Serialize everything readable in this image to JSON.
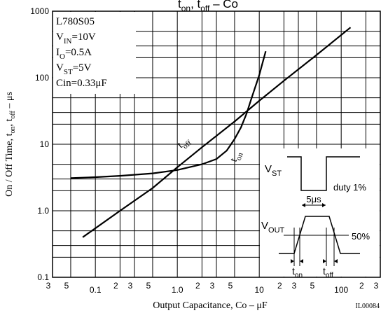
{
  "chart_data": {
    "type": "line",
    "title_main": "t",
    "title_sub_on": "on",
    "title_sep": ",  t",
    "title_sub_off": "off",
    "title_tail": " – Co",
    "xlabel": "Output Capacitance, Co  –  μF",
    "ylabel_parts": [
      "On / Off  Time, t",
      "on",
      ", t",
      "off",
      "  –  μs"
    ],
    "figure_code": "IL00084",
    "x_scale": "log",
    "y_scale": "log",
    "xlim": [
      0.03,
      300
    ],
    "ylim": [
      0.1,
      1000
    ],
    "grid": true,
    "decade_labels": [
      "0.1",
      "1.0",
      "10",
      "100"
    ],
    "minor_labels": [
      "2",
      "3",
      "5"
    ],
    "y_tick_labels": [
      {
        "value": 1000,
        "label": "1000"
      },
      {
        "value": 100,
        "label": "100"
      },
      {
        "value": 10,
        "label": "10"
      },
      {
        "value": 1,
        "label": "1.0"
      },
      {
        "value": 0.1,
        "label": "0.1"
      }
    ],
    "conditions": [
      {
        "base": "L780S05",
        "sub": "",
        "tail": ""
      },
      {
        "base": "V",
        "sub": "IN",
        "tail": "=10V"
      },
      {
        "base": "I",
        "sub": "O",
        "tail": "=0.5A"
      },
      {
        "base": "V",
        "sub": "ST",
        "tail": "=5V"
      },
      {
        "base": "Cin=0.33μF",
        "sub": "",
        "tail": ""
      }
    ],
    "series": [
      {
        "label_base": "t",
        "label_sub": "off",
        "x": [
          0.07,
          0.2,
          0.5,
          1,
          2,
          5,
          10,
          20,
          50,
          130
        ],
        "y": [
          0.4,
          1.0,
          2.2,
          4.5,
          9,
          22,
          45,
          90,
          220,
          570
        ]
      },
      {
        "label_base": "t",
        "label_sub": "on",
        "x": [
          0.05,
          0.1,
          0.2,
          0.5,
          1,
          2,
          3,
          4,
          5,
          6,
          7,
          8,
          10,
          12
        ],
        "y": [
          3.1,
          3.2,
          3.35,
          3.65,
          4.1,
          5.0,
          6.0,
          8.0,
          12,
          18,
          29,
          48,
          110,
          250
        ]
      }
    ],
    "inset": {
      "vst_base": "V",
      "vst_sub": "ST",
      "duty": "duty 1%",
      "pulse": "5μs",
      "vout_base": "V",
      "vout_sub": "OUT",
      "pct": "50%",
      "ton_base": "t",
      "ton_sub": "on",
      "toff_base": "t",
      "toff_sub": "off"
    }
  }
}
